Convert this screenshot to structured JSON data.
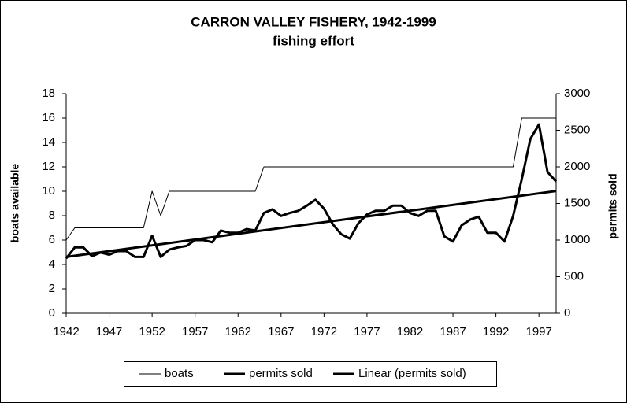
{
  "chart_data": {
    "type": "line",
    "title": "CARRON VALLEY FISHERY, 1942-1999",
    "subtitle": "fishing effort",
    "y_label": "boats available",
    "y2_label": "permits sold",
    "x": [
      1942,
      1943,
      1944,
      1945,
      1946,
      1947,
      1948,
      1949,
      1950,
      1951,
      1952,
      1953,
      1954,
      1955,
      1956,
      1957,
      1958,
      1959,
      1960,
      1961,
      1962,
      1963,
      1964,
      1965,
      1966,
      1967,
      1968,
      1969,
      1970,
      1971,
      1972,
      1973,
      1974,
      1975,
      1976,
      1977,
      1978,
      1979,
      1980,
      1981,
      1982,
      1983,
      1984,
      1985,
      1986,
      1987,
      1988,
      1989,
      1990,
      1991,
      1992,
      1993,
      1994,
      1995,
      1996,
      1997,
      1998,
      1999
    ],
    "series": [
      {
        "name": "boats",
        "color": "#000000",
        "values": [
          6,
          7,
          7,
          7,
          7,
          7,
          7,
          7,
          7,
          7,
          10,
          8,
          10,
          10,
          10,
          10,
          10,
          10,
          10,
          10,
          10,
          10,
          10,
          12,
          12,
          12,
          12,
          12,
          12,
          12,
          12,
          12,
          12,
          12,
          12,
          12,
          12,
          12,
          12,
          12,
          12,
          12,
          12,
          12,
          12,
          12,
          12,
          12,
          12,
          12,
          12,
          12,
          12,
          16,
          16,
          16,
          16,
          16
        ]
      },
      {
        "name": "permits sold",
        "color": "#000000",
        "axis": "y2",
        "values": [
          750,
          900,
          900,
          780,
          830,
          800,
          850,
          850,
          770,
          770,
          1060,
          770,
          870,
          900,
          920,
          1000,
          1000,
          970,
          1130,
          1100,
          1100,
          1150,
          1130,
          1370,
          1420,
          1330,
          1370,
          1400,
          1470,
          1550,
          1430,
          1220,
          1080,
          1020,
          1230,
          1350,
          1400,
          1400,
          1470,
          1470,
          1370,
          1330,
          1400,
          1400,
          1050,
          980,
          1200,
          1280,
          1320,
          1100,
          1100,
          980,
          1330,
          1830,
          2380,
          2580,
          1930,
          1800
        ]
      },
      {
        "name": "Linear (permits sold)",
        "color": "#000000",
        "axis": "y2",
        "x": [
          1942,
          1999
        ],
        "values": [
          770,
          1670
        ]
      }
    ],
    "xlim": [
      1942,
      1999
    ],
    "xticks": [
      1942,
      1947,
      1952,
      1957,
      1962,
      1967,
      1972,
      1977,
      1982,
      1987,
      1992,
      1997
    ],
    "ylim": [
      0,
      18
    ],
    "yticks": [
      0,
      2,
      4,
      6,
      8,
      10,
      12,
      14,
      16,
      18
    ],
    "y2lim": [
      0,
      3000
    ],
    "y2ticks": [
      0,
      500,
      1000,
      1500,
      2000,
      2500,
      3000
    ],
    "legend": "bottom",
    "grid": false
  }
}
